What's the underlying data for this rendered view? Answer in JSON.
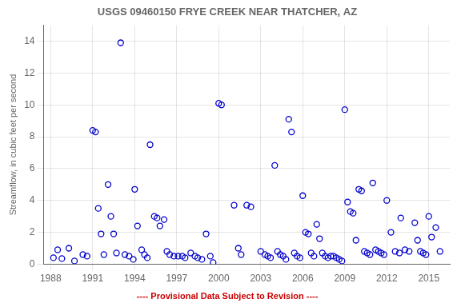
{
  "chart_data": {
    "type": "scatter",
    "title": "USGS 09460150 FRYE CREEK NEAR THATCHER, AZ",
    "ylabel": "Streamflow, in cubic feet per second",
    "annotations": [
      {
        "text": "---- Provisional Data Subject to Revision ----",
        "color": "#cc0000"
      }
    ],
    "xlim": [
      1987.5,
      2016.5
    ],
    "ylim": [
      0,
      15
    ],
    "xticks": [
      1988,
      1991,
      1994,
      1997,
      2000,
      2003,
      2006,
      2009,
      2012,
      2015
    ],
    "yticks": [
      0,
      2,
      4,
      6,
      8,
      10,
      12,
      14
    ],
    "grid": true,
    "color": "#0000cc",
    "marker": "circle",
    "x": [
      1988.2,
      1988.5,
      1988.8,
      1989.3,
      1989.7,
      1990.3,
      1990.6,
      1991.0,
      1991.2,
      1991.4,
      1991.6,
      1991.8,
      1992.1,
      1992.3,
      1992.5,
      1992.7,
      1993.0,
      1993.3,
      1993.6,
      1993.9,
      1994.0,
      1994.2,
      1994.5,
      1994.7,
      1994.9,
      1995.1,
      1995.4,
      1995.6,
      1995.8,
      1996.1,
      1996.3,
      1996.5,
      1996.8,
      1997.1,
      1997.4,
      1997.6,
      1998.0,
      1998.3,
      1998.5,
      1998.8,
      1999.1,
      1999.4,
      1999.6,
      2000.0,
      2000.2,
      2001.1,
      2001.4,
      2001.6,
      2002.0,
      2002.3,
      2003.0,
      2003.3,
      2003.5,
      2003.7,
      2004.0,
      2004.2,
      2004.4,
      2004.6,
      2004.8,
      2005.0,
      2005.2,
      2005.4,
      2005.6,
      2005.8,
      2006.0,
      2006.2,
      2006.4,
      2006.6,
      2006.8,
      2007.0,
      2007.2,
      2007.4,
      2007.6,
      2007.8,
      2008.0,
      2008.2,
      2008.4,
      2008.6,
      2008.8,
      2009.0,
      2009.2,
      2009.4,
      2009.6,
      2009.8,
      2010.0,
      2010.2,
      2010.4,
      2010.6,
      2010.8,
      2011.0,
      2011.2,
      2011.4,
      2011.6,
      2011.8,
      2012.0,
      2012.3,
      2012.6,
      2012.9,
      2013.0,
      2013.3,
      2013.6,
      2014.0,
      2014.2,
      2014.4,
      2014.6,
      2014.8,
      2015.0,
      2015.2,
      2015.5,
      2015.8
    ],
    "values": [
      0.4,
      0.9,
      0.35,
      1.0,
      0.2,
      0.6,
      0.5,
      8.4,
      8.3,
      3.5,
      1.9,
      0.6,
      5.0,
      3.0,
      1.9,
      0.7,
      13.9,
      0.6,
      0.5,
      0.3,
      4.7,
      2.4,
      0.9,
      0.6,
      0.4,
      7.5,
      3.0,
      2.9,
      2.4,
      2.8,
      0.8,
      0.6,
      0.5,
      0.5,
      0.5,
      0.4,
      0.7,
      0.5,
      0.4,
      0.3,
      1.9,
      0.5,
      0.1,
      10.1,
      10.0,
      3.7,
      1.0,
      0.6,
      3.7,
      3.6,
      0.8,
      0.6,
      0.5,
      0.4,
      6.2,
      0.8,
      0.6,
      0.5,
      0.3,
      9.1,
      8.3,
      0.7,
      0.5,
      0.4,
      4.3,
      2.0,
      1.9,
      0.7,
      0.5,
      2.5,
      1.6,
      0.7,
      0.5,
      0.4,
      0.5,
      0.5,
      0.4,
      0.3,
      0.2,
      9.7,
      3.9,
      3.3,
      3.2,
      1.5,
      4.7,
      4.6,
      0.8,
      0.7,
      0.6,
      5.1,
      0.9,
      0.8,
      0.7,
      0.6,
      4.0,
      2.0,
      0.8,
      0.7,
      2.9,
      0.9,
      0.8,
      2.6,
      1.5,
      0.8,
      0.7,
      0.6,
      3.0,
      1.7,
      2.3,
      0.8
    ]
  }
}
